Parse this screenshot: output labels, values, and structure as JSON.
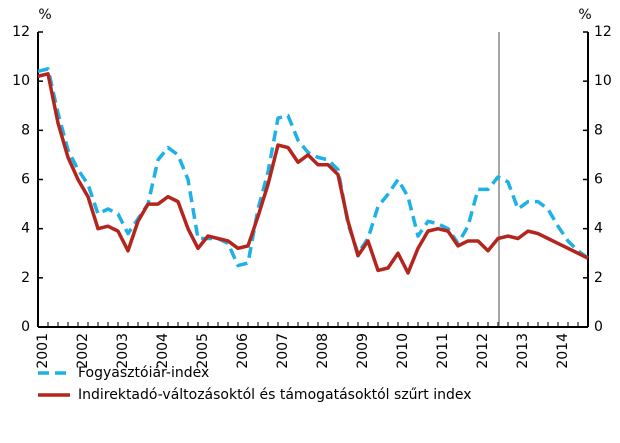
{
  "chart_data": {
    "type": "line",
    "y_unit": "%",
    "categories": [
      "2001",
      null,
      null,
      null,
      "2002",
      null,
      null,
      null,
      "2003",
      null,
      null,
      null,
      "2004",
      null,
      null,
      null,
      "2005",
      null,
      null,
      null,
      "2006",
      null,
      null,
      null,
      "2007",
      null,
      null,
      null,
      "2008",
      null,
      null,
      null,
      "2009",
      null,
      null,
      null,
      "2010",
      null,
      null,
      null,
      "2011",
      null,
      null,
      null,
      "2012",
      null,
      null,
      null,
      "2013",
      null,
      null,
      null,
      "2014",
      null,
      null,
      null
    ],
    "series": [
      {
        "name": "Fogyasztóiár-index",
        "color": "#1eb1e6",
        "dashed": true,
        "values": [
          10.4,
          10.5,
          8.7,
          7.2,
          6.4,
          5.8,
          4.6,
          4.8,
          4.6,
          3.8,
          4.4,
          5.0,
          6.8,
          7.3,
          7.0,
          6.0,
          3.6,
          3.6,
          3.6,
          3.4,
          2.5,
          2.6,
          4.8,
          6.3,
          8.5,
          8.6,
          7.6,
          7.1,
          6.9,
          6.8,
          6.4,
          4.2,
          3.0,
          3.6,
          4.9,
          5.4,
          6.0,
          5.3,
          3.7,
          4.3,
          4.2,
          4.0,
          3.4,
          4.1,
          5.6,
          5.6,
          6.1,
          5.9,
          4.8,
          5.1,
          5.1,
          4.8,
          4.1,
          3.5,
          3.1,
          2.8
        ]
      },
      {
        "name": "Indirektadó-változásoktól és támogatásoktól szűrt index",
        "color": "#b3261e",
        "dashed": false,
        "values": [
          10.2,
          10.3,
          8.3,
          6.9,
          6.0,
          5.3,
          4.0,
          4.1,
          3.9,
          3.1,
          4.3,
          5.0,
          5.0,
          5.3,
          5.1,
          4.0,
          3.2,
          3.7,
          3.6,
          3.5,
          3.2,
          3.3,
          4.5,
          5.8,
          7.4,
          7.3,
          6.7,
          7.0,
          6.6,
          6.6,
          6.2,
          4.3,
          2.9,
          3.5,
          2.3,
          2.4,
          3.0,
          2.2,
          3.2,
          3.9,
          4.0,
          3.9,
          3.3,
          3.5,
          3.5,
          3.1,
          3.6,
          3.7,
          3.6,
          3.9,
          3.8,
          3.6,
          3.4,
          3.2,
          3.0,
          2.8
        ]
      }
    ],
    "ylim": [
      0,
      12
    ],
    "yticks": [
      0,
      2,
      4,
      6,
      8,
      10,
      12
    ],
    "y2lim": [
      0,
      12
    ],
    "y2ticks": [
      0,
      2,
      4,
      6,
      8,
      10,
      12
    ]
  }
}
